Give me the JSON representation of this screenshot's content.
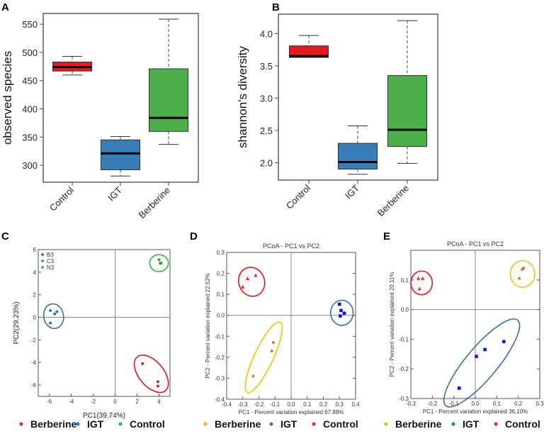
{
  "chart_data": [
    {
      "panel": "A",
      "type": "box",
      "ylabel": "observed species",
      "categories": [
        "Control",
        "IGT",
        "Berberine"
      ],
      "colors": [
        "#e41a1c",
        "#377eb8",
        "#4daf4a"
      ],
      "yticks": [
        300,
        350,
        400,
        450,
        500,
        550
      ],
      "ylim": [
        270,
        569
      ],
      "boxes": [
        {
          "min": 460,
          "q1": 467,
          "median": 474,
          "q3": 483,
          "max": 493
        },
        {
          "min": 281,
          "q1": 292,
          "median": 321,
          "q3": 345,
          "max": 351
        },
        {
          "min": 337,
          "q1": 360,
          "median": 384,
          "q3": 471,
          "max": 559
        }
      ]
    },
    {
      "panel": "B",
      "type": "box",
      "ylabel": "shannon's diversity",
      "categories": [
        "Control",
        "IGT",
        "Berberine"
      ],
      "colors": [
        "#e41a1c",
        "#377eb8",
        "#4daf4a"
      ],
      "yticks": [
        "2.0",
        "2.5",
        "3.0",
        "3.5",
        "4.0"
      ],
      "ylim": [
        1.73,
        4.3
      ],
      "boxes": [
        {
          "min": 3.63,
          "q1": 3.63,
          "median": 3.65,
          "q3": 3.81,
          "max": 3.97
        },
        {
          "min": 1.82,
          "q1": 1.9,
          "median": 2.01,
          "q3": 2.3,
          "max": 2.57
        },
        {
          "min": 1.99,
          "q1": 2.25,
          "median": 2.51,
          "q3": 3.35,
          "max": 4.2
        }
      ]
    },
    {
      "panel": "C",
      "type": "scatter",
      "title": "",
      "xlabel": "PC1(39.74%)",
      "ylabel": "PC2(29.23%)",
      "xlim": [
        -7,
        5
      ],
      "ylim": [
        -7,
        6
      ],
      "xticks": [
        "-6",
        "-4",
        "-2",
        "0",
        "2",
        "4"
      ],
      "yticks": [
        "-6",
        "-4",
        "-2",
        "0",
        "2",
        "4",
        "6"
      ],
      "inner_legend": [
        {
          "label": "B3",
          "color": "#e41a1c"
        },
        {
          "label": "C3",
          "color": "#1f78c8"
        },
        {
          "label": "N3",
          "color": "#33a02c"
        }
      ],
      "series": [
        {
          "name": "B3",
          "color": "#e41a1c",
          "marker": "circle",
          "points": [
            [
              2.5,
              -4.1
            ],
            [
              3.9,
              -5.7
            ],
            [
              3.9,
              -6.1
            ]
          ],
          "ellipse": {
            "cx": 3.3,
            "cy": -5.0,
            "rx": 2.0,
            "ry": 1.1,
            "angle": -50,
            "color": "#ee1111"
          }
        },
        {
          "name": "C3",
          "color": "#1f78c8",
          "marker": "circle",
          "points": [
            [
              -5.9,
              0.6
            ],
            [
              -5.3,
              0.5
            ],
            [
              -5.5,
              0.3
            ],
            [
              -5.9,
              -0.5
            ]
          ],
          "ellipse": {
            "cx": -5.6,
            "cy": 0.1,
            "rx": 0.9,
            "ry": 1.1,
            "angle": 10,
            "color": "#3a6ea5"
          }
        },
        {
          "name": "N3",
          "color": "#33a02c",
          "marker": "circle",
          "points": [
            [
              4.0,
              5.1
            ],
            [
              4.1,
              4.8
            ],
            [
              4.2,
              4.8
            ]
          ],
          "ellipse": {
            "cx": 4.0,
            "cy": 4.8,
            "rx": 0.85,
            "ry": 0.75,
            "angle": 0,
            "color": "#22bb44"
          }
        }
      ],
      "legend": [
        {
          "label": "Berberine",
          "color": "#ff2020"
        },
        {
          "label": "IGT",
          "color": "#1f78c8"
        },
        {
          "label": "Control",
          "color": "#33b040"
        }
      ]
    },
    {
      "panel": "D",
      "type": "scatter",
      "title": "PCoA - PC1 vs PC2",
      "xlabel": "PC1 - Percent variation explained 67.88%",
      "ylabel": "PC2 - Percent variation explained 22.52%",
      "xlim": [
        -0.4,
        0.4
      ],
      "ylim": [
        -0.4,
        0.3
      ],
      "xticks": [
        "-0.4",
        "-0.3",
        "-0.2",
        "-0.1",
        "0.0",
        "0.1",
        "0.2",
        "0.3",
        "0.4"
      ],
      "yticks": [
        "-0.4",
        "-0.3",
        "-0.2",
        "-0.1",
        "0.0",
        "0.1",
        "0.2",
        "0.3"
      ],
      "series": [
        {
          "name": "Control",
          "color": "#ff2020",
          "marker": "triangle",
          "points": [
            [
              -0.3,
              0.135
            ],
            [
              -0.27,
              0.175
            ],
            [
              -0.22,
              0.19
            ]
          ],
          "ellipse": {
            "cx": -0.245,
            "cy": 0.16,
            "rx": 0.08,
            "ry": 0.07,
            "angle": 20,
            "color": "#ee1111"
          }
        },
        {
          "name": "IGT",
          "color": "#1010ff",
          "marker": "square",
          "points": [
            [
              0.3,
              0.053
            ],
            [
              0.31,
              0.023
            ],
            [
              0.33,
              0.01
            ],
            [
              0.305,
              -0.003
            ]
          ],
          "ellipse": {
            "cx": 0.315,
            "cy": 0.012,
            "rx": 0.07,
            "ry": 0.06,
            "angle": 0,
            "color": "#3a6ea5"
          }
        },
        {
          "name": "Berberine",
          "color": "#f07020",
          "marker": "circle",
          "points": [
            [
              -0.11,
              -0.13
            ],
            [
              -0.12,
              -0.17
            ],
            [
              -0.235,
              -0.29
            ]
          ],
          "ellipse": {
            "cx": -0.17,
            "cy": -0.2,
            "rx": 0.24,
            "ry": 0.045,
            "angle": 65,
            "color": "#ffc000"
          }
        }
      ],
      "legend": [
        {
          "label": "Berberine",
          "color": "#ffb000"
        },
        {
          "label": "IGT",
          "color": "#1f78c8"
        },
        {
          "label": "Control",
          "color": "#ff2020"
        }
      ]
    },
    {
      "panel": "E",
      "type": "scatter",
      "title": "PCoA - PC1 vs PC2",
      "xlabel": "PC1 - Percent variation explained 36.10%",
      "ylabel": "PC2 - Percent variation explained 20.11%",
      "xlim": [
        -0.3,
        0.3
      ],
      "ylim": [
        -0.3,
        0.2
      ],
      "xticks": [
        "-0.3",
        "-0.2",
        "-0.1",
        "0.0",
        "0.1",
        "0.2",
        "0.3"
      ],
      "yticks": [
        "-0.3",
        "-0.2",
        "-0.1",
        "0.0",
        "0.1"
      ],
      "series": [
        {
          "name": "Control",
          "color": "#ff2020",
          "marker": "triangle",
          "points": [
            [
              -0.265,
              0.105
            ],
            [
              -0.245,
              0.105
            ],
            [
              -0.26,
              0.07
            ]
          ],
          "ellipse": {
            "cx": -0.25,
            "cy": 0.09,
            "rx": 0.05,
            "ry": 0.04,
            "angle": 0,
            "color": "#ee1111"
          }
        },
        {
          "name": "Berberine",
          "color": "#f07020",
          "marker": "circle",
          "points": [
            [
              0.205,
              0.105
            ],
            [
              0.218,
              0.135
            ],
            [
              0.225,
              0.14
            ]
          ],
          "ellipse": {
            "cx": 0.22,
            "cy": 0.12,
            "rx": 0.057,
            "ry": 0.045,
            "angle": 0,
            "color": "#ffc000"
          }
        },
        {
          "name": "IGT",
          "color": "#1010ff",
          "marker": "square",
          "points": [
            [
              -0.075,
              -0.265
            ],
            [
              0.005,
              -0.158
            ],
            [
              0.045,
              -0.135
            ],
            [
              0.133,
              -0.108
            ]
          ],
          "ellipse": {
            "cx": 0.03,
            "cy": -0.18,
            "rx": 0.26,
            "ry": 0.053,
            "angle": 50,
            "color": "#3a6ea5"
          }
        }
      ],
      "legend": [
        {
          "label": "Berberine",
          "color": "#ffb000"
        },
        {
          "label": "IGT",
          "color": "#1f78c8"
        },
        {
          "label": "Control",
          "color": "#ff2020"
        }
      ]
    }
  ]
}
